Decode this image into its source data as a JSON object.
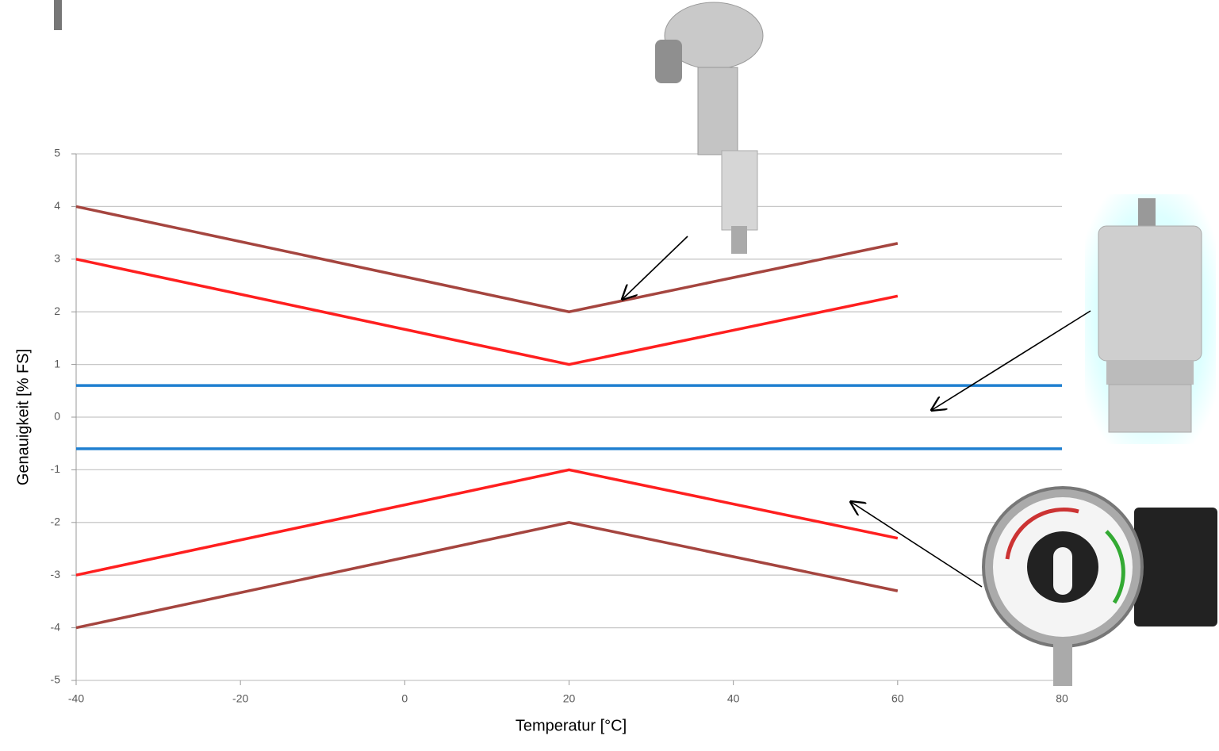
{
  "chart_data": {
    "type": "line",
    "x_label": "Temperatur [°C]",
    "y_label": "Genauigkeit [% FS]",
    "x": [
      -40,
      20,
      60,
      80
    ],
    "series": [
      {
        "color": "#a5453f",
        "values": [
          4,
          2,
          3.3,
          null
        ]
      },
      {
        "color": "#ff1f1f",
        "values": [
          3,
          1,
          2.3,
          null
        ]
      },
      {
        "color": "#1f7fd0",
        "values": [
          0.6,
          0.6,
          0.6,
          0.6
        ]
      },
      {
        "color": "#1f7fd0",
        "values": [
          -0.6,
          -0.6,
          -0.6,
          -0.6
        ]
      },
      {
        "color": "#ff1f1f",
        "values": [
          -3,
          -1,
          -2.3,
          null
        ]
      },
      {
        "color": "#a5453f",
        "values": [
          -4,
          -2,
          -3.3,
          null
        ]
      }
    ],
    "xlim": [
      -40,
      80
    ],
    "xticks": [
      -40,
      -20,
      0,
      20,
      40,
      60,
      80
    ],
    "ylim": [
      -5,
      5
    ],
    "yticks": [
      -5,
      -4,
      -3,
      -2,
      -1,
      0,
      1,
      2,
      3,
      4,
      5
    ],
    "grid": true
  }
}
